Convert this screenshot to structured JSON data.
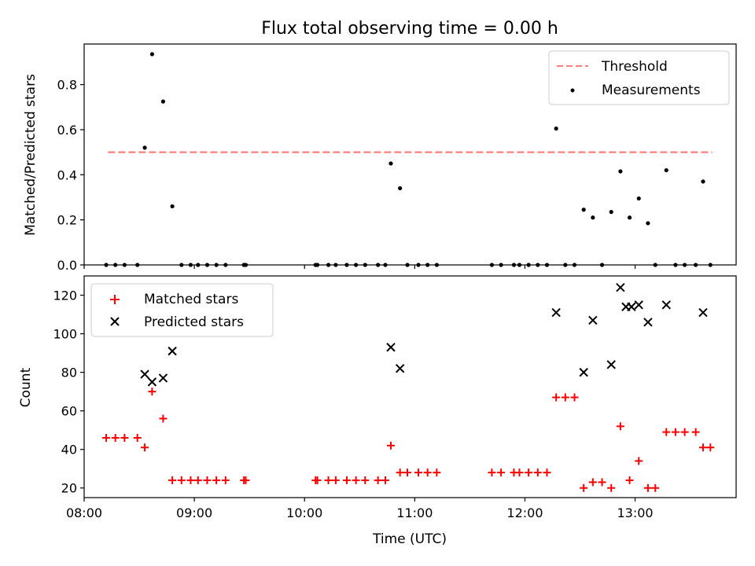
{
  "chart_data": [
    {
      "type": "scatter",
      "title": "Flux total observing time = 0.00 h",
      "xlabel": "",
      "ylabel": "Matched/Predicted stars",
      "xlim": [
        "08:00",
        "13:55"
      ],
      "ylim": [
        0,
        0.98
      ],
      "x_ticks": [
        "08:00",
        "09:00",
        "10:00",
        "11:00",
        "12:00",
        "13:00"
      ],
      "x_tick_labels_visible": false,
      "y_ticks": [
        "0.0",
        "0.2",
        "0.4",
        "0.6",
        "0.8"
      ],
      "legend_position": "top-right",
      "threshold": {
        "name": "Threshold",
        "value": 0.5,
        "x_range": [
          "08:13",
          "13:42"
        ],
        "color": "#ff7f7f",
        "style": "dashed"
      },
      "series": [
        {
          "name": "Measurements",
          "color": "#000000",
          "marker": "dot",
          "points": [
            {
              "x": "08:12",
              "y": 0
            },
            {
              "x": "08:17",
              "y": 0
            },
            {
              "x": "08:22",
              "y": 0
            },
            {
              "x": "08:29",
              "y": 0
            },
            {
              "x": "08:33",
              "y": 0.52
            },
            {
              "x": "08:37",
              "y": 0.935
            },
            {
              "x": "08:43",
              "y": 0.725
            },
            {
              "x": "08:48",
              "y": 0.26
            },
            {
              "x": "08:53",
              "y": 0
            },
            {
              "x": "08:58",
              "y": 0
            },
            {
              "x": "09:02",
              "y": 0
            },
            {
              "x": "09:07",
              "y": 0
            },
            {
              "x": "09:12",
              "y": 0
            },
            {
              "x": "09:17",
              "y": 0
            },
            {
              "x": "09:27",
              "y": 0
            },
            {
              "x": "09:28",
              "y": 0
            },
            {
              "x": "10:06",
              "y": 0
            },
            {
              "x": "10:07",
              "y": 0
            },
            {
              "x": "10:13",
              "y": 0
            },
            {
              "x": "10:17",
              "y": 0
            },
            {
              "x": "10:23",
              "y": 0
            },
            {
              "x": "10:28",
              "y": 0
            },
            {
              "x": "10:33",
              "y": 0
            },
            {
              "x": "10:40",
              "y": 0
            },
            {
              "x": "10:44",
              "y": 0
            },
            {
              "x": "10:47",
              "y": 0.45
            },
            {
              "x": "10:52",
              "y": 0.34
            },
            {
              "x": "10:56",
              "y": 0
            },
            {
              "x": "11:02",
              "y": 0
            },
            {
              "x": "11:07",
              "y": 0
            },
            {
              "x": "11:12",
              "y": 0
            },
            {
              "x": "11:42",
              "y": 0
            },
            {
              "x": "11:47",
              "y": 0
            },
            {
              "x": "11:54",
              "y": 0
            },
            {
              "x": "11:57",
              "y": 0
            },
            {
              "x": "12:02",
              "y": 0
            },
            {
              "x": "12:07",
              "y": 0
            },
            {
              "x": "12:12",
              "y": 0
            },
            {
              "x": "12:17",
              "y": 0.605
            },
            {
              "x": "12:22",
              "y": 0
            },
            {
              "x": "12:27",
              "y": 0
            },
            {
              "x": "12:32",
              "y": 0.245
            },
            {
              "x": "12:37",
              "y": 0.21
            },
            {
              "x": "12:42",
              "y": 0
            },
            {
              "x": "12:47",
              "y": 0.235
            },
            {
              "x": "12:52",
              "y": 0.415
            },
            {
              "x": "12:57",
              "y": 0.21
            },
            {
              "x": "13:02",
              "y": 0.295
            },
            {
              "x": "13:07",
              "y": 0.185
            },
            {
              "x": "13:11",
              "y": 0
            },
            {
              "x": "13:17",
              "y": 0.42
            },
            {
              "x": "13:22",
              "y": 0
            },
            {
              "x": "13:27",
              "y": 0
            },
            {
              "x": "13:33",
              "y": 0
            },
            {
              "x": "13:37",
              "y": 0.37
            },
            {
              "x": "13:41",
              "y": 0
            }
          ]
        }
      ]
    },
    {
      "type": "scatter",
      "title": "",
      "xlabel": "Time (UTC)",
      "ylabel": "Count",
      "xlim": [
        "08:00",
        "13:55"
      ],
      "ylim": [
        15,
        130
      ],
      "x_ticks": [
        "08:00",
        "09:00",
        "10:00",
        "11:00",
        "12:00",
        "13:00"
      ],
      "y_ticks": [
        "20",
        "40",
        "60",
        "80",
        "100",
        "120"
      ],
      "legend_position": "top-left",
      "series": [
        {
          "name": "Matched stars",
          "color": "#ff0000",
          "marker": "plus",
          "points": [
            {
              "x": "08:12",
              "y": 46
            },
            {
              "x": "08:17",
              "y": 46
            },
            {
              "x": "08:22",
              "y": 46
            },
            {
              "x": "08:29",
              "y": 46
            },
            {
              "x": "08:33",
              "y": 41
            },
            {
              "x": "08:37",
              "y": 70
            },
            {
              "x": "08:43",
              "y": 56
            },
            {
              "x": "08:48",
              "y": 24
            },
            {
              "x": "08:53",
              "y": 24
            },
            {
              "x": "08:58",
              "y": 24
            },
            {
              "x": "09:02",
              "y": 24
            },
            {
              "x": "09:07",
              "y": 24
            },
            {
              "x": "09:12",
              "y": 24
            },
            {
              "x": "09:17",
              "y": 24
            },
            {
              "x": "09:27",
              "y": 24
            },
            {
              "x": "09:28",
              "y": 24
            },
            {
              "x": "10:06",
              "y": 24
            },
            {
              "x": "10:07",
              "y": 24
            },
            {
              "x": "10:13",
              "y": 24
            },
            {
              "x": "10:17",
              "y": 24
            },
            {
              "x": "10:23",
              "y": 24
            },
            {
              "x": "10:28",
              "y": 24
            },
            {
              "x": "10:33",
              "y": 24
            },
            {
              "x": "10:40",
              "y": 24
            },
            {
              "x": "10:44",
              "y": 24
            },
            {
              "x": "10:47",
              "y": 42
            },
            {
              "x": "10:52",
              "y": 28
            },
            {
              "x": "10:56",
              "y": 28
            },
            {
              "x": "11:02",
              "y": 28
            },
            {
              "x": "11:07",
              "y": 28
            },
            {
              "x": "11:12",
              "y": 28
            },
            {
              "x": "11:42",
              "y": 28
            },
            {
              "x": "11:47",
              "y": 28
            },
            {
              "x": "11:54",
              "y": 28
            },
            {
              "x": "11:57",
              "y": 28
            },
            {
              "x": "12:02",
              "y": 28
            },
            {
              "x": "12:07",
              "y": 28
            },
            {
              "x": "12:12",
              "y": 28
            },
            {
              "x": "12:17",
              "y": 67
            },
            {
              "x": "12:22",
              "y": 67
            },
            {
              "x": "12:27",
              "y": 67
            },
            {
              "x": "12:32",
              "y": 20
            },
            {
              "x": "12:37",
              "y": 23
            },
            {
              "x": "12:42",
              "y": 23
            },
            {
              "x": "12:47",
              "y": 20
            },
            {
              "x": "12:52",
              "y": 52
            },
            {
              "x": "12:57",
              "y": 24
            },
            {
              "x": "13:02",
              "y": 34
            },
            {
              "x": "13:07",
              "y": 20
            },
            {
              "x": "13:11",
              "y": 20
            },
            {
              "x": "13:17",
              "y": 49
            },
            {
              "x": "13:22",
              "y": 49
            },
            {
              "x": "13:27",
              "y": 49
            },
            {
              "x": "13:33",
              "y": 49
            },
            {
              "x": "13:37",
              "y": 41
            },
            {
              "x": "13:41",
              "y": 41
            }
          ]
        },
        {
          "name": "Predicted stars",
          "color": "#000000",
          "marker": "x",
          "points": [
            {
              "x": "08:33",
              "y": 79
            },
            {
              "x": "08:37",
              "y": 75
            },
            {
              "x": "08:43",
              "y": 77
            },
            {
              "x": "08:48",
              "y": 91
            },
            {
              "x": "10:47",
              "y": 93
            },
            {
              "x": "10:52",
              "y": 82
            },
            {
              "x": "12:17",
              "y": 111
            },
            {
              "x": "12:32",
              "y": 80
            },
            {
              "x": "12:37",
              "y": 107
            },
            {
              "x": "12:47",
              "y": 84
            },
            {
              "x": "12:52",
              "y": 124
            },
            {
              "x": "12:55",
              "y": 114
            },
            {
              "x": "12:58",
              "y": 114
            },
            {
              "x": "13:02",
              "y": 115
            },
            {
              "x": "13:07",
              "y": 106
            },
            {
              "x": "13:17",
              "y": 115
            },
            {
              "x": "13:37",
              "y": 111
            }
          ]
        }
      ]
    }
  ]
}
